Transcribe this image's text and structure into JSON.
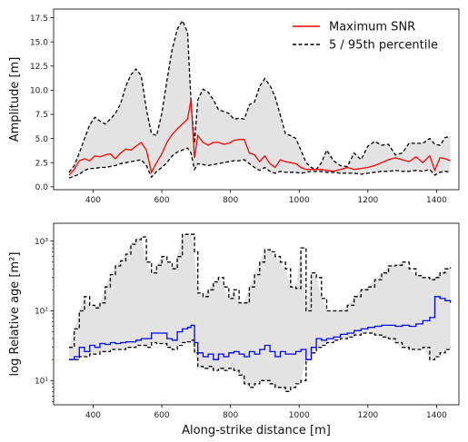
{
  "chart_data": [
    {
      "type": "line",
      "ylabel": "Amplitude [m]",
      "xlabel": "",
      "xlim": [
        285,
        1465
      ],
      "ylim": [
        -0.3,
        18.4
      ],
      "x_ticks": [
        400,
        600,
        800,
        1000,
        1200,
        1400
      ],
      "x_tick_labels": [
        "400",
        "600",
        "800",
        "1000",
        "1200",
        "1400"
      ],
      "y_ticks": [
        0,
        2.5,
        5,
        7.5,
        10,
        12.5,
        15,
        17.5
      ],
      "y_tick_labels": [
        "0.0",
        "2.5",
        "5.0",
        "7.5",
        "10.0",
        "12.5",
        "15.0",
        "17.5"
      ],
      "legend": {
        "position": "top-right",
        "entries": [
          {
            "label": "Maximum SNR",
            "color": "#ff0000",
            "style": "solid"
          },
          {
            "label": "5 / 95th percentile",
            "color": "#000000",
            "style": "dashed"
          }
        ]
      },
      "series": [
        {
          "name": "Maximum SNR",
          "color": "#ff0000",
          "x": [
            330,
            345,
            360,
            375,
            390,
            405,
            420,
            435,
            450,
            465,
            480,
            495,
            510,
            525,
            540,
            555,
            570,
            585,
            600,
            615,
            630,
            645,
            660,
            675,
            685,
            695,
            705,
            720,
            735,
            750,
            765,
            780,
            795,
            810,
            825,
            840,
            855,
            870,
            885,
            900,
            915,
            930,
            945,
            960,
            975,
            990,
            1005,
            1020,
            1035,
            1050,
            1065,
            1080,
            1100,
            1120,
            1140,
            1160,
            1180,
            1200,
            1220,
            1240,
            1260,
            1280,
            1300,
            1320,
            1340,
            1360,
            1380,
            1395,
            1410,
            1425,
            1440
          ],
          "y": [
            1.2,
            1.8,
            2.7,
            2.9,
            2.7,
            3.2,
            3.1,
            3.3,
            3.4,
            2.9,
            3.5,
            3.9,
            3.8,
            4.2,
            4.6,
            3.8,
            1.5,
            2.5,
            3.4,
            4.6,
            5.4,
            6.0,
            6.5,
            7.0,
            9.0,
            3.0,
            5.3,
            4.6,
            4.3,
            4.6,
            4.6,
            4.4,
            4.5,
            4.8,
            4.9,
            4.9,
            3.5,
            3.3,
            2.6,
            3.2,
            2.4,
            2.0,
            2.8,
            2.6,
            2.5,
            2.4,
            2.0,
            1.8,
            1.8,
            1.8,
            1.8,
            1.7,
            1.6,
            1.8,
            2.0,
            1.8,
            1.9,
            2.0,
            2.2,
            2.5,
            2.8,
            3.0,
            2.8,
            2.6,
            3.1,
            2.5,
            3.2,
            1.7,
            3.0,
            2.9,
            2.7
          ]
        },
        {
          "name": "5 / 95th percentile",
          "color": "#000000",
          "x": [
            330,
            345,
            360,
            375,
            390,
            405,
            420,
            435,
            450,
            465,
            480,
            495,
            510,
            525,
            540,
            555,
            570,
            585,
            600,
            615,
            630,
            645,
            660,
            675,
            685,
            695,
            705,
            720,
            735,
            750,
            765,
            780,
            795,
            810,
            825,
            840,
            855,
            870,
            885,
            900,
            915,
            930,
            945,
            960,
            975,
            990,
            1005,
            1020,
            1035,
            1050,
            1065,
            1080,
            1100,
            1120,
            1140,
            1160,
            1180,
            1200,
            1220,
            1240,
            1260,
            1280,
            1300,
            1320,
            1340,
            1360,
            1380,
            1395,
            1410,
            1425,
            1440
          ],
          "y": [
            1.5,
            2.2,
            3.5,
            5.0,
            6.4,
            7.2,
            6.8,
            6.5,
            7.0,
            7.6,
            8.6,
            10.4,
            11.6,
            12.2,
            11.5,
            8.0,
            5.5,
            5.3,
            7.6,
            11.0,
            14.2,
            16.3,
            17.2,
            16.0,
            8.8,
            4.5,
            9.0,
            10.1,
            9.8,
            9.0,
            8.0,
            7.8,
            7.6,
            7.0,
            7.1,
            7.0,
            8.5,
            8.8,
            10.4,
            11.2,
            10.5,
            9.3,
            7.4,
            5.5,
            5.3,
            5.0,
            3.8,
            2.5,
            2.0,
            1.8,
            2.5,
            3.8,
            2.7,
            2.2,
            2.1,
            3.5,
            2.8,
            4.2,
            4.7,
            4.3,
            4.4,
            3.3,
            3.5,
            4.5,
            4.5,
            4.5,
            5.0,
            4.4,
            4.3,
            5.1,
            5.2
          ]
        },
        {
          "name": "5 / 95th percentile",
          "color": "#000000",
          "x": [
            330,
            345,
            360,
            375,
            390,
            405,
            420,
            435,
            450,
            465,
            480,
            495,
            510,
            525,
            540,
            555,
            570,
            585,
            600,
            615,
            630,
            645,
            660,
            675,
            685,
            695,
            705,
            720,
            735,
            750,
            765,
            780,
            795,
            810,
            825,
            840,
            855,
            870,
            885,
            900,
            915,
            930,
            945,
            960,
            975,
            990,
            1005,
            1020,
            1035,
            1050,
            1065,
            1080,
            1100,
            1120,
            1140,
            1160,
            1180,
            1200,
            1220,
            1240,
            1260,
            1280,
            1300,
            1320,
            1340,
            1360,
            1380,
            1395,
            1410,
            1425,
            1440
          ],
          "y": [
            0.9,
            1.1,
            1.3,
            1.7,
            1.9,
            1.9,
            2.0,
            2.0,
            2.1,
            2.2,
            2.4,
            2.5,
            2.6,
            2.7,
            2.8,
            2.2,
            1.0,
            1.6,
            2.0,
            2.5,
            3.2,
            3.6,
            3.8,
            4.0,
            3.5,
            1.8,
            2.4,
            2.3,
            2.2,
            2.3,
            2.4,
            2.5,
            2.6,
            2.7,
            2.7,
            2.8,
            2.4,
            2.0,
            1.7,
            2.0,
            1.6,
            1.4,
            1.6,
            1.5,
            1.5,
            1.5,
            1.4,
            1.5,
            1.6,
            1.6,
            1.6,
            1.5,
            1.5,
            1.4,
            1.4,
            1.4,
            1.3,
            1.4,
            1.5,
            1.6,
            1.6,
            1.7,
            1.6,
            1.6,
            1.7,
            1.6,
            1.8,
            1.2,
            1.5,
            1.6,
            1.5
          ]
        }
      ]
    },
    {
      "type": "line",
      "ylabel": "log Relative age [m²]",
      "xlabel": "Along-strike distance [m]",
      "xlim": [
        285,
        1465
      ],
      "ylim": [
        4.5,
        1800
      ],
      "log_y": true,
      "x_ticks": [
        400,
        600,
        800,
        1000,
        1200,
        1400
      ],
      "x_tick_labels": [
        "400",
        "600",
        "800",
        "1000",
        "1200",
        "1400"
      ],
      "y_ticks": [
        10,
        100,
        1000
      ],
      "y_tick_labels": [
        "10¹",
        "10²",
        "10³"
      ],
      "series": [
        {
          "color": "#0000ff",
          "x": [
            330,
            345,
            360,
            375,
            390,
            405,
            420,
            435,
            450,
            465,
            480,
            495,
            510,
            525,
            540,
            555,
            570,
            585,
            600,
            615,
            630,
            645,
            660,
            675,
            685,
            695,
            705,
            720,
            735,
            750,
            765,
            780,
            795,
            810,
            825,
            840,
            855,
            870,
            885,
            900,
            915,
            930,
            945,
            960,
            975,
            990,
            1005,
            1020,
            1035,
            1050,
            1065,
            1080,
            1100,
            1120,
            1140,
            1160,
            1180,
            1200,
            1220,
            1240,
            1260,
            1280,
            1300,
            1320,
            1340,
            1360,
            1380,
            1395,
            1410,
            1425,
            1440
          ],
          "y": [
            20,
            22,
            30,
            26,
            32,
            30,
            34,
            33,
            35,
            34,
            35,
            36,
            36,
            38,
            40,
            40,
            48,
            48,
            48,
            40,
            38,
            50,
            55,
            58,
            62,
            35,
            25,
            22,
            24,
            20,
            24,
            22,
            25,
            26,
            24,
            22,
            26,
            24,
            28,
            32,
            26,
            22,
            26,
            24,
            24,
            26,
            28,
            20,
            30,
            40,
            38,
            40,
            42,
            46,
            48,
            52,
            55,
            58,
            60,
            62,
            62,
            60,
            62,
            60,
            65,
            72,
            80,
            160,
            150,
            140,
            130
          ]
        },
        {
          "color": "#000000",
          "x": [
            330,
            345,
            360,
            375,
            390,
            405,
            420,
            435,
            450,
            465,
            480,
            495,
            510,
            525,
            540,
            555,
            570,
            585,
            600,
            615,
            630,
            645,
            660,
            675,
            685,
            695,
            705,
            720,
            735,
            750,
            765,
            780,
            795,
            810,
            825,
            840,
            855,
            870,
            885,
            900,
            915,
            930,
            945,
            960,
            975,
            990,
            1005,
            1020,
            1035,
            1050,
            1065,
            1080,
            1100,
            1120,
            1140,
            1160,
            1180,
            1200,
            1220,
            1240,
            1260,
            1280,
            1300,
            1320,
            1340,
            1360,
            1380,
            1395,
            1410,
            1425,
            1440
          ],
          "y": [
            30,
            55,
            100,
            160,
            120,
            110,
            130,
            220,
            330,
            440,
            520,
            650,
            900,
            1050,
            1150,
            500,
            350,
            450,
            600,
            500,
            400,
            600,
            1250,
            1250,
            1250,
            700,
            180,
            160,
            200,
            260,
            300,
            220,
            150,
            200,
            130,
            130,
            220,
            330,
            500,
            750,
            700,
            600,
            500,
            400,
            220,
            210,
            800,
            100,
            350,
            300,
            150,
            100,
            100,
            100,
            120,
            160,
            200,
            220,
            280,
            350,
            440,
            450,
            500,
            400,
            320,
            300,
            280,
            300,
            350,
            400,
            420
          ]
        },
        {
          "color": "#000000",
          "x": [
            330,
            345,
            360,
            375,
            390,
            405,
            420,
            435,
            450,
            465,
            480,
            495,
            510,
            525,
            540,
            555,
            570,
            585,
            600,
            615,
            630,
            645,
            660,
            675,
            685,
            695,
            705,
            720,
            735,
            750,
            765,
            780,
            795,
            810,
            825,
            840,
            855,
            870,
            885,
            900,
            915,
            930,
            945,
            960,
            975,
            990,
            1005,
            1020,
            1035,
            1050,
            1065,
            1080,
            1100,
            1120,
            1140,
            1160,
            1180,
            1200,
            1220,
            1240,
            1260,
            1280,
            1300,
            1320,
            1340,
            1360,
            1380,
            1395,
            1410,
            1425,
            1440
          ],
          "y": [
            20,
            20,
            22,
            22,
            24,
            24,
            26,
            26,
            28,
            28,
            28,
            30,
            30,
            32,
            32,
            30,
            35,
            34,
            34,
            30,
            28,
            32,
            35,
            36,
            38,
            25,
            16,
            15,
            16,
            14,
            15,
            14,
            15,
            14,
            12,
            9,
            8,
            9,
            10,
            10,
            9,
            8,
            8,
            7,
            8,
            9,
            10,
            20,
            25,
            30,
            32,
            35,
            38,
            40,
            42,
            45,
            48,
            48,
            45,
            42,
            40,
            35,
            30,
            28,
            28,
            30,
            20,
            22,
            25,
            28,
            30
          ]
        }
      ]
    }
  ]
}
